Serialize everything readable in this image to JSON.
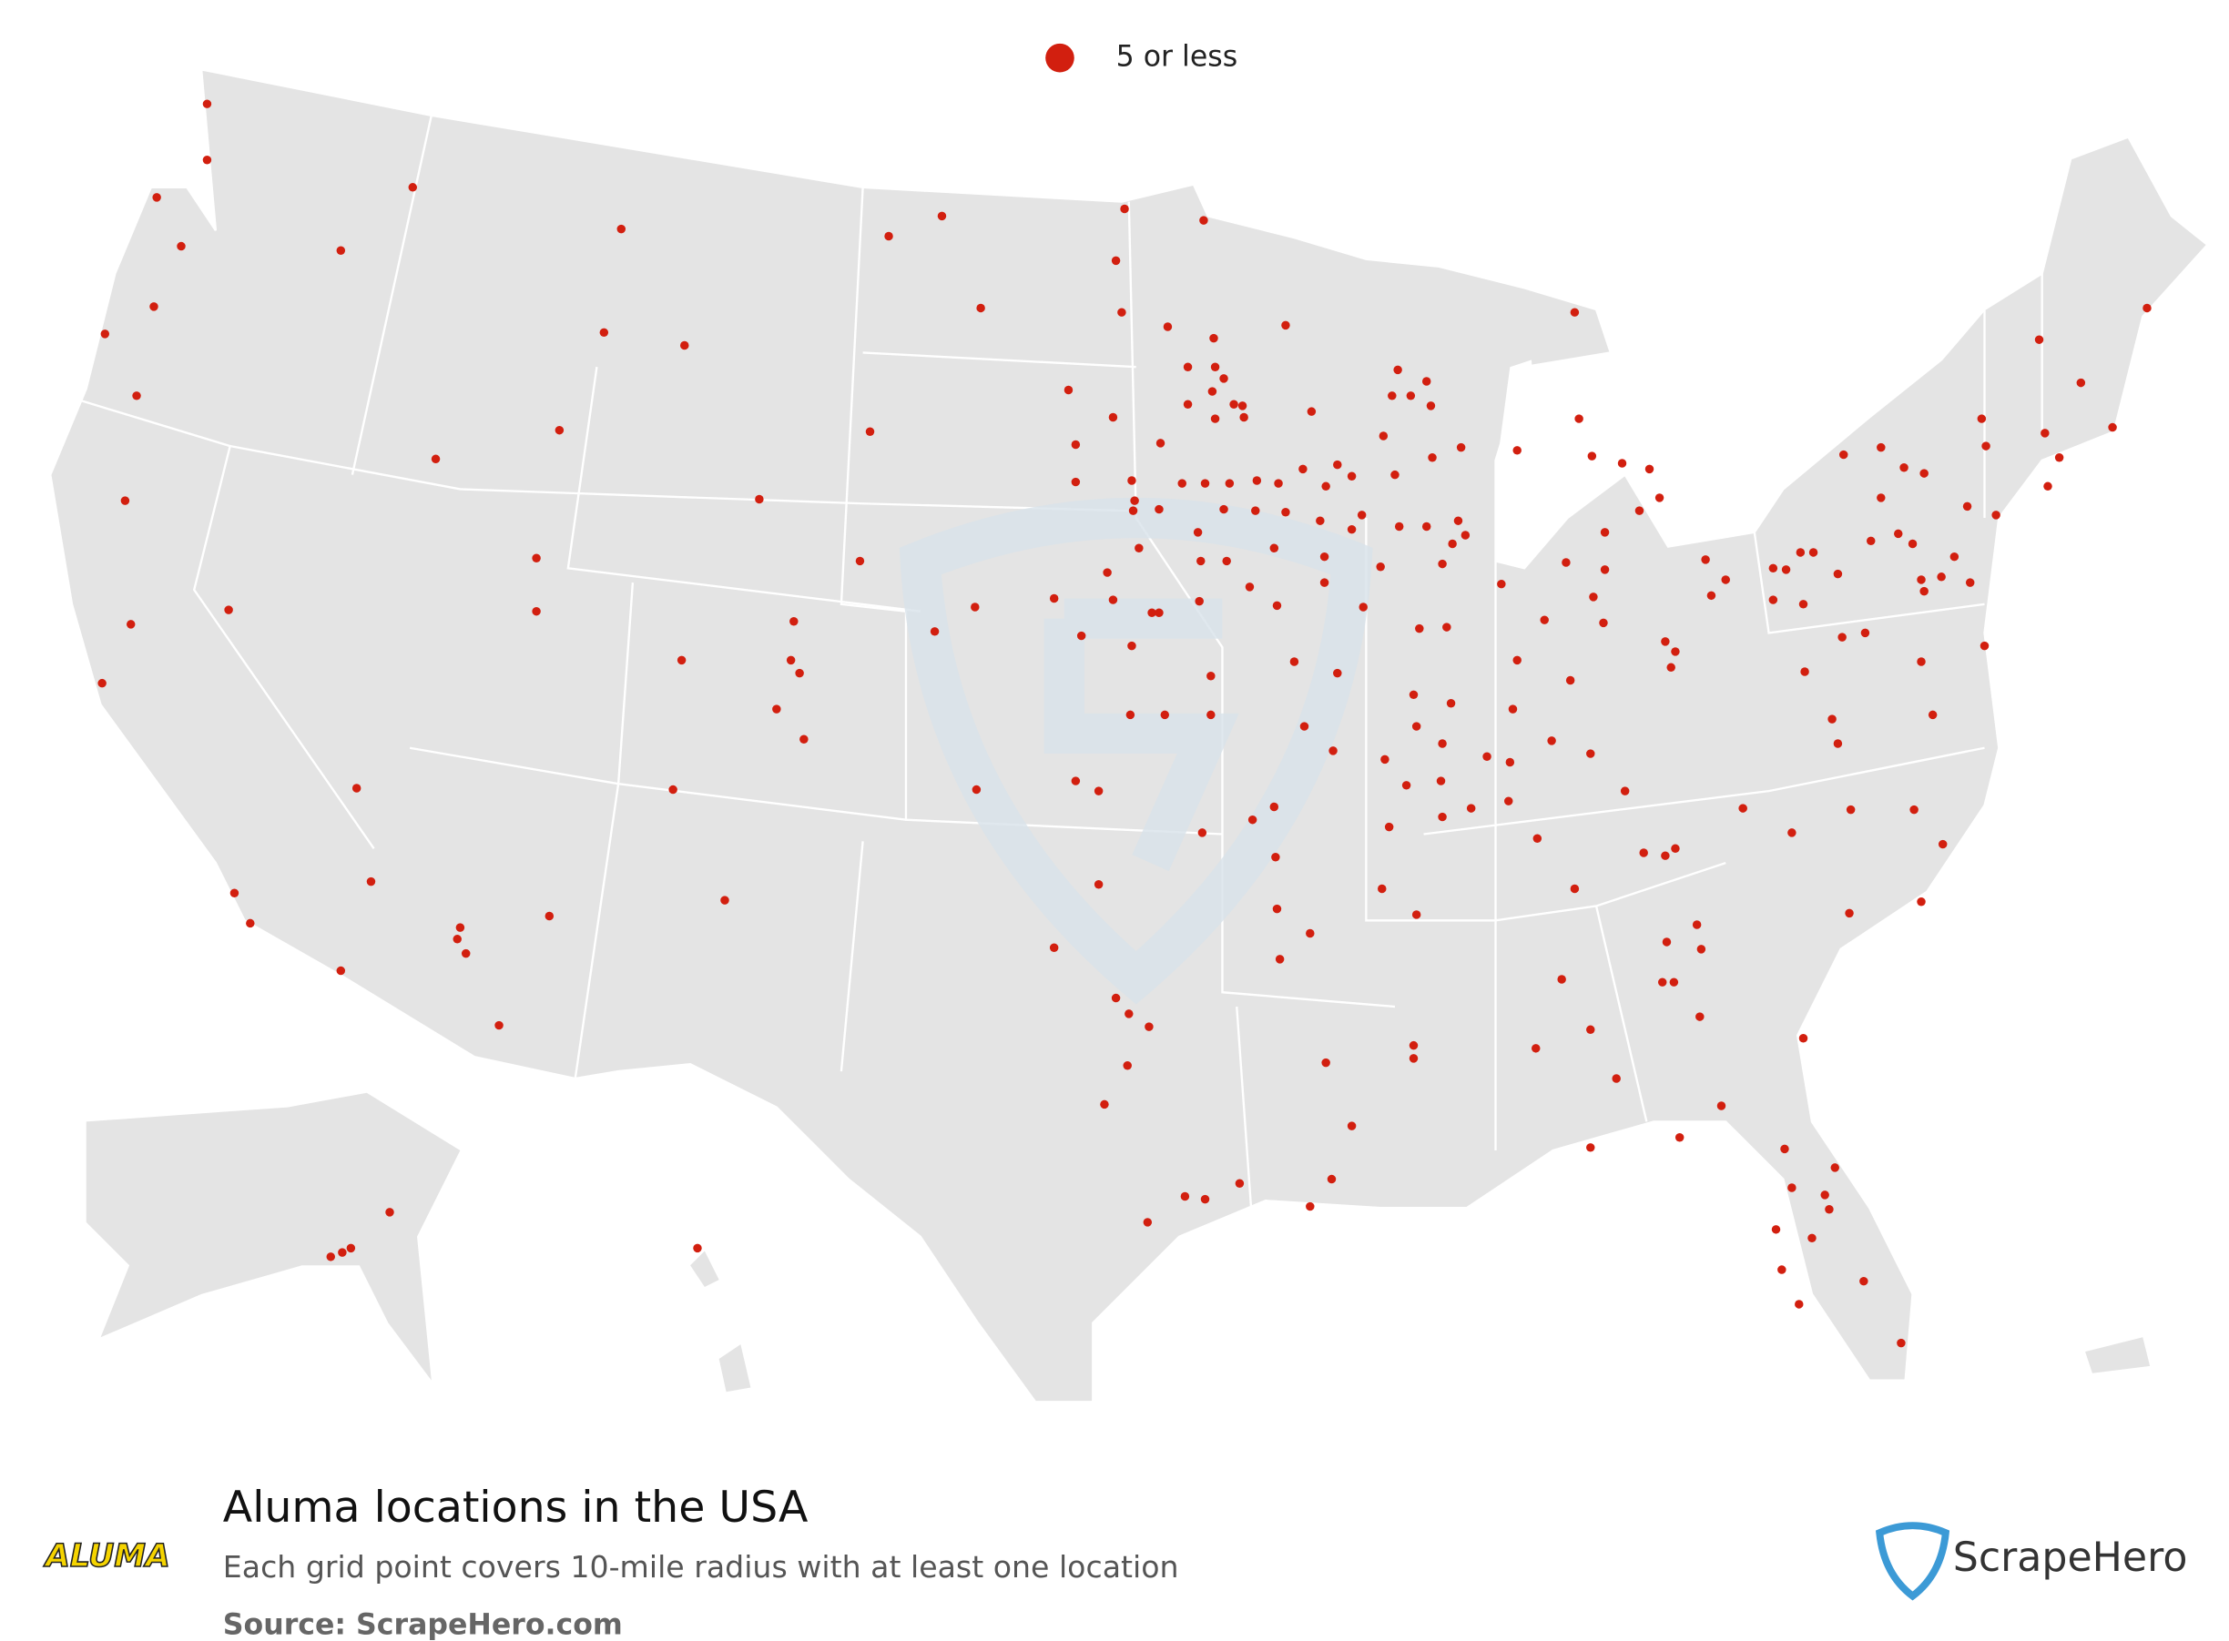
{
  "legend": {
    "label": "5 or less"
  },
  "title": "Aluma locations in the USA",
  "subtitle": "Each grid point covers 10-mile radius with at least one location",
  "source": "Source: ScrapeHero.com",
  "brand": "ScrapeHero",
  "logo": "ALUMA"
}
